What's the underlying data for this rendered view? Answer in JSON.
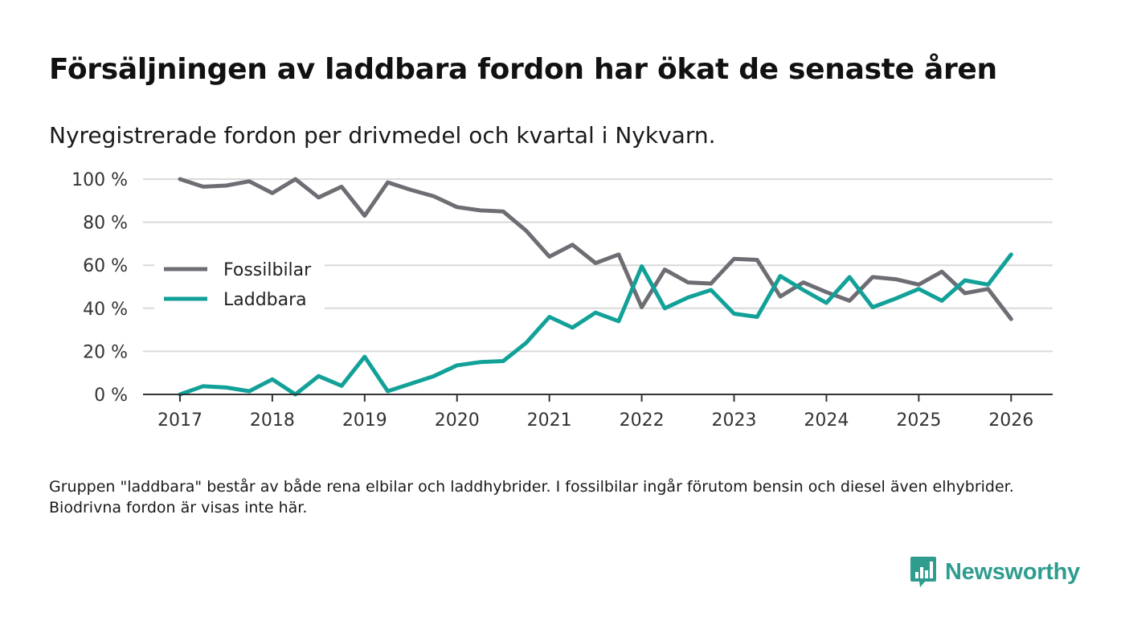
{
  "title": "Försäljningen av laddbara fordon har ökat de senaste åren",
  "subtitle": "Nyregistrerade fordon per drivmedel och kvartal i Nykvarn.",
  "note": "Gruppen \"laddbara\" består av både rena elbilar och laddhybrider. I fossilbilar ingår förutom bensin och diesel även elhybrider. Biodrivna fordon är visas inte här.",
  "brand": {
    "name": "Newsworthy",
    "color": "#2e9d8f"
  },
  "chart_data": {
    "type": "line",
    "title": "Försäljningen av laddbara fordon har ökat de senaste åren",
    "xlabel": "",
    "ylabel": "",
    "x_start": 2017,
    "x_step": 0.25,
    "xlim": [
      2016.6,
      2026.45
    ],
    "ylim": [
      0,
      100
    ],
    "x_ticks": [
      2017,
      2018,
      2019,
      2020,
      2021,
      2022,
      2023,
      2024,
      2025,
      2026
    ],
    "x_tick_labels": [
      "2017",
      "2018",
      "2019",
      "2020",
      "2021",
      "2022",
      "2023",
      "2024",
      "2025",
      "2026"
    ],
    "y_ticks": [
      0,
      20,
      40,
      60,
      80,
      100
    ],
    "y_tick_labels": [
      "0 %",
      "20 %",
      "40 %",
      "60 %",
      "80 %",
      "100 %"
    ],
    "grid": true,
    "legend_position": "middle-left",
    "series": [
      {
        "name": "Fossilbilar",
        "color": "#6f6d74",
        "values": [
          100,
          96.5,
          97,
          99,
          93.5,
          100,
          91.5,
          96.5,
          83,
          98.5,
          95,
          92,
          87,
          85.5,
          85,
          76,
          64,
          69.5,
          61,
          65,
          40.5,
          58,
          52,
          51.5,
          63,
          62.5,
          45.5,
          52,
          47.5,
          43.5,
          54.5,
          53.5,
          51,
          57,
          47,
          49,
          35
        ]
      },
      {
        "name": "Laddbara",
        "color": "#12a198",
        "values": [
          0,
          3.8,
          3.2,
          1.5,
          7,
          0,
          8.5,
          4,
          17.5,
          1.5,
          5,
          8.5,
          13.5,
          15,
          15.5,
          24,
          36,
          31,
          38,
          34,
          59.5,
          40,
          45,
          48.5,
          37.5,
          36,
          55,
          48.5,
          42.5,
          54.5,
          40.5,
          44.5,
          49,
          43.5,
          53,
          51,
          65
        ]
      }
    ]
  }
}
